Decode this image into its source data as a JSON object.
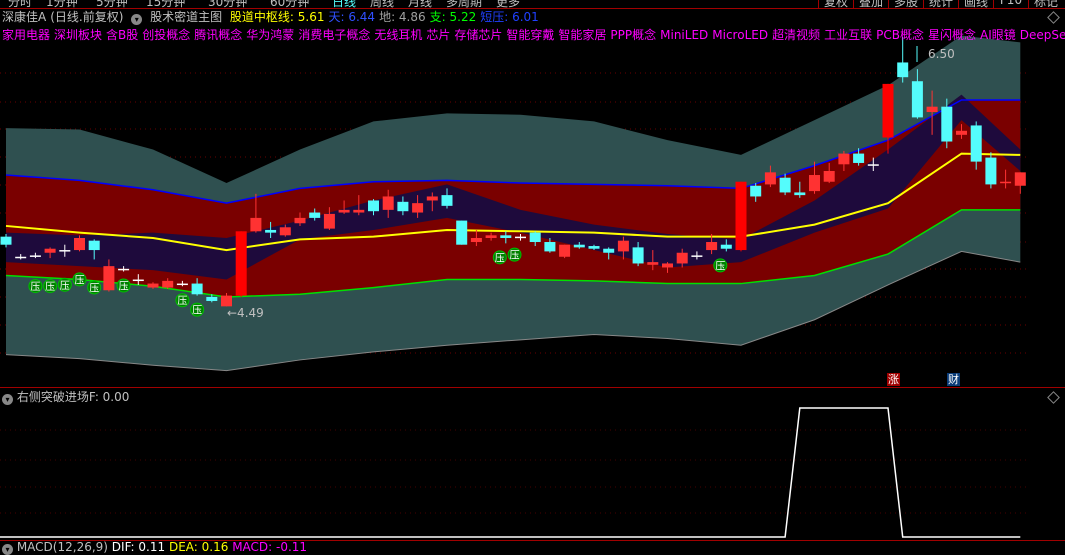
{
  "toolbar": {
    "periods": [
      "分时",
      "1分钟",
      "5分钟",
      "15分钟",
      "30分钟",
      "60分钟",
      "日线",
      "周线",
      "月线",
      "多周期",
      "更多"
    ],
    "active_period": "日线",
    "right_buttons": [
      "复权",
      "叠加",
      "多股",
      "统计",
      "画线",
      "F10",
      "标记"
    ]
  },
  "header": {
    "stock": "深康佳A",
    "mode": "(日线.前复权)",
    "indicator": "股术密道主图",
    "values": [
      {
        "label": "股道中枢线: 5.61",
        "color": "#ffff00"
      },
      {
        "label": "天: 6.44",
        "color": "#3050ff"
      },
      {
        "label": "地: 4.86",
        "color": "#a0a0a0"
      },
      {
        "label": "支: 5.22",
        "color": "#00ff00"
      },
      {
        "label": "短压: 6.01",
        "color": "#2040ff"
      }
    ]
  },
  "concepts": [
    "家用电器",
    "深圳板块",
    "含B股",
    "创投概念",
    "腾讯概念",
    "华为鸿蒙",
    "消费电子概念",
    "无线耳机",
    "芯片",
    "存储芯片",
    "智能穿戴",
    "智能家居",
    "PPP概念",
    "MiniLED",
    "MicroLED",
    "超清视频",
    "工业互联",
    "PCB概念",
    "星闪概念",
    "AI眼镜",
    "DeepSeek概念"
  ],
  "chart": {
    "high_label": "6.50",
    "low_label": "←4.49",
    "pressure_marker": "压",
    "events": [
      {
        "label": "涨",
        "color": "#a00000"
      },
      {
        "label": "财",
        "color": "#0a3c78"
      }
    ],
    "colors": {
      "up": "#ff3232",
      "limit_up": "#ff0000",
      "down": "#54fcfc",
      "outer": "#2f5050",
      "band": "#7a0000",
      "channel": "#1e0a3c",
      "mid": "#ffff00",
      "upper": "#0000ff",
      "lower": "#00e000"
    }
  },
  "chart_data": {
    "type": "candlestick",
    "candles_ohlc": [
      [
        5.01,
        5.03,
        4.93,
        4.95
      ],
      [
        4.86,
        4.88,
        4.84,
        4.86
      ],
      [
        4.87,
        4.89,
        4.85,
        4.87
      ],
      [
        4.89,
        4.93,
        4.85,
        4.92
      ],
      [
        4.91,
        4.95,
        4.86,
        4.91
      ],
      [
        4.91,
        5.02,
        4.9,
        5.0
      ],
      [
        4.98,
        4.99,
        4.84,
        4.91
      ],
      [
        4.61,
        4.84,
        4.6,
        4.79
      ],
      [
        4.77,
        4.79,
        4.75,
        4.77
      ],
      [
        4.69,
        4.73,
        4.65,
        4.69
      ],
      [
        4.63,
        4.67,
        4.62,
        4.66
      ],
      [
        4.63,
        4.7,
        4.62,
        4.68
      ],
      [
        4.66,
        4.68,
        4.64,
        4.66
      ],
      [
        4.66,
        4.7,
        4.57,
        4.58
      ],
      [
        4.56,
        4.58,
        4.52,
        4.53
      ],
      [
        4.49,
        4.59,
        4.49,
        4.57
      ],
      [
        4.57,
        5.05,
        4.56,
        5.05
      ],
      [
        5.05,
        5.33,
        5.04,
        5.15
      ],
      [
        5.06,
        5.12,
        5.0,
        5.04
      ],
      [
        5.02,
        5.1,
        5.01,
        5.08
      ],
      [
        5.11,
        5.19,
        5.09,
        5.15
      ],
      [
        5.19,
        5.22,
        5.13,
        5.15
      ],
      [
        5.07,
        5.23,
        5.06,
        5.18
      ],
      [
        5.19,
        5.28,
        5.18,
        5.21
      ],
      [
        5.19,
        5.32,
        5.17,
        5.21
      ],
      [
        5.28,
        5.29,
        5.17,
        5.2
      ],
      [
        5.21,
        5.36,
        5.15,
        5.31
      ],
      [
        5.27,
        5.31,
        5.17,
        5.2
      ],
      [
        5.19,
        5.32,
        5.15,
        5.26
      ],
      [
        5.28,
        5.34,
        5.2,
        5.31
      ],
      [
        5.32,
        5.37,
        5.22,
        5.24
      ],
      [
        5.13,
        5.13,
        4.95,
        4.95
      ],
      [
        4.97,
        5.06,
        4.94,
        5.0
      ],
      [
        5.0,
        5.04,
        4.98,
        5.02
      ],
      [
        5.02,
        5.05,
        4.96,
        5.0
      ],
      [
        5.01,
        5.03,
        4.98,
        5.01
      ],
      [
        5.04,
        5.05,
        4.94,
        4.97
      ],
      [
        4.97,
        5.0,
        4.89,
        4.9
      ],
      [
        4.86,
        4.95,
        4.85,
        4.95
      ],
      [
        4.95,
        4.97,
        4.92,
        4.93
      ],
      [
        4.94,
        4.95,
        4.91,
        4.92
      ],
      [
        4.92,
        4.93,
        4.84,
        4.89
      ],
      [
        4.9,
        5.01,
        4.84,
        4.98
      ],
      [
        4.93,
        4.97,
        4.79,
        4.81
      ],
      [
        4.8,
        4.91,
        4.76,
        4.82
      ],
      [
        4.78,
        4.82,
        4.74,
        4.81
      ],
      [
        4.81,
        4.92,
        4.78,
        4.89
      ],
      [
        4.87,
        4.9,
        4.84,
        4.87
      ],
      [
        4.91,
        5.03,
        4.88,
        4.97
      ],
      [
        4.95,
        4.99,
        4.9,
        4.92
      ],
      [
        4.91,
        5.42,
        4.9,
        5.42
      ],
      [
        5.39,
        5.41,
        5.27,
        5.31
      ],
      [
        5.4,
        5.54,
        5.38,
        5.49
      ],
      [
        5.45,
        5.48,
        5.32,
        5.34
      ],
      [
        5.34,
        5.42,
        5.3,
        5.32
      ],
      [
        5.35,
        5.57,
        5.33,
        5.47
      ],
      [
        5.42,
        5.56,
        5.41,
        5.5
      ],
      [
        5.55,
        5.65,
        5.5,
        5.63
      ],
      [
        5.63,
        5.67,
        5.54,
        5.56
      ],
      [
        5.55,
        5.6,
        5.5,
        5.55
      ],
      [
        5.75,
        6.15,
        5.63,
        6.15
      ],
      [
        6.31,
        6.5,
        6.16,
        6.2
      ],
      [
        6.17,
        6.26,
        5.89,
        5.9
      ],
      [
        5.94,
        6.1,
        5.77,
        5.98
      ],
      [
        5.98,
        6.04,
        5.67,
        5.72
      ],
      [
        5.77,
        5.85,
        5.74,
        5.8
      ],
      [
        5.84,
        5.87,
        5.51,
        5.57
      ],
      [
        5.6,
        5.64,
        5.37,
        5.4
      ],
      [
        5.41,
        5.51,
        5.37,
        5.42
      ],
      [
        5.39,
        5.49,
        5.33,
        5.49
      ]
    ],
    "limit_up_bars": [
      16,
      50,
      60
    ],
    "band_sample_bars": [
      0,
      5,
      10,
      15,
      20,
      25,
      30,
      35,
      40,
      45,
      50,
      55,
      60,
      65,
      69
    ],
    "outer_top": [
      5.82,
      5.81,
      5.66,
      5.41,
      5.66,
      5.87,
      5.93,
      5.92,
      5.87,
      5.73,
      5.62,
      5.88,
      6.14,
      6.51,
      6.46
    ],
    "upper_line": [
      5.47,
      5.43,
      5.36,
      5.26,
      5.37,
      5.42,
      5.43,
      5.41,
      5.4,
      5.39,
      5.37,
      5.54,
      5.73,
      6.03,
      6.03
    ],
    "channel_top": [
      5.04,
      5.02,
      5.04,
      5.0,
      5.13,
      5.28,
      5.4,
      5.21,
      5.1,
      5.03,
      4.99,
      5.28,
      5.66,
      6.07,
      5.66
    ],
    "channel_bottom": [
      4.82,
      4.79,
      4.76,
      4.69,
      4.99,
      5.06,
      5.15,
      5.04,
      4.91,
      4.78,
      4.82,
      5.04,
      5.22,
      5.88,
      5.5
    ],
    "mid_line": [
      5.09,
      5.04,
      5.0,
      4.91,
      4.99,
      5.01,
      5.06,
      5.05,
      5.04,
      5.01,
      5.01,
      5.1,
      5.26,
      5.63,
      5.62
    ],
    "lower_line": [
      4.72,
      4.69,
      4.64,
      4.56,
      4.58,
      4.63,
      4.69,
      4.69,
      4.68,
      4.66,
      4.66,
      4.72,
      4.88,
      5.21,
      5.21
    ],
    "outer_bottom": [
      4.13,
      4.1,
      4.05,
      4.01,
      4.09,
      4.15,
      4.2,
      4.24,
      4.28,
      4.25,
      4.2,
      4.39,
      4.65,
      4.9,
      4.82
    ],
    "pressure_bars": [
      2,
      3,
      4,
      5,
      6,
      8,
      12,
      13,
      35,
      34,
      49
    ],
    "high": 6.5,
    "low": 4.49
  },
  "sub_chart": {
    "title": "右侧突破进场F",
    "value": ": 0.00",
    "signal_on_bars": [
      54,
      60
    ]
  },
  "macd": {
    "title": "MACD(12,26,9)",
    "dif": "DIF: 0.11",
    "dea": "DEA: 0.16",
    "macd": "MACD: -0.11"
  }
}
